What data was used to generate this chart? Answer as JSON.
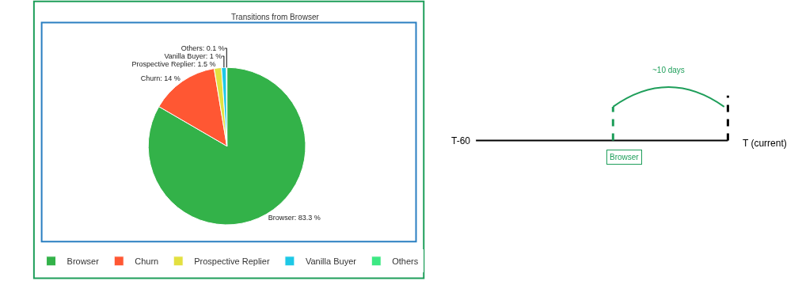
{
  "chart_data": [
    {
      "type": "pie",
      "title": "Transitions from Browser",
      "categories": [
        "Browser",
        "Churn",
        "Prospective Replier",
        "Vanilla Buyer",
        "Others"
      ],
      "values": [
        83.3,
        14,
        1.5,
        1,
        0.1
      ],
      "colors": [
        "#33b249",
        "#ff5733",
        "#e3e040",
        "#1ec8e6",
        "#3de883"
      ],
      "value_labels": [
        "Browser: 83.3 %",
        "Churn: 14 %",
        "Prospective Replier: 1.5 %",
        "Vanilla Buyer: 1 %",
        "Others: 0.1 %"
      ],
      "legend": "bottom"
    },
    {
      "type": "other",
      "annotations": [
        "T-60",
        "T (current)",
        "~10 days",
        "Browser"
      ]
    }
  ]
}
